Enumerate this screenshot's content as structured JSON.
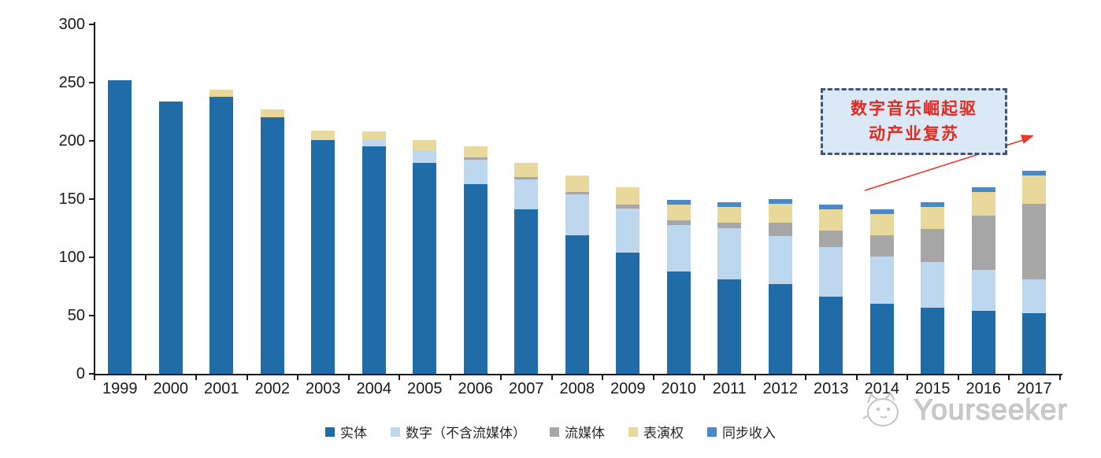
{
  "chart_data": {
    "type": "bar",
    "stacked": true,
    "title": "",
    "xlabel": "",
    "ylabel": "",
    "ylim": [
      0,
      300
    ],
    "ytick_step": 50,
    "ytick_labels": [
      "0",
      "50",
      "100",
      "150",
      "200",
      "250",
      "300"
    ],
    "grid": false,
    "legend_position": "bottom",
    "categories": [
      "1999",
      "2000",
      "2001",
      "2002",
      "2003",
      "2004",
      "2005",
      "2006",
      "2007",
      "2008",
      "2009",
      "2010",
      "2011",
      "2012",
      "2013",
      "2014",
      "2015",
      "2016",
      "2017"
    ],
    "series": [
      {
        "name": "实体",
        "color": "#1F6CA9",
        "values": [
          252,
          234,
          238,
          220,
          201,
          195,
          181,
          163,
          141,
          119,
          104,
          88,
          81,
          77,
          66,
          60,
          57,
          54,
          52
        ]
      },
      {
        "name": "数字（不含流媒体）",
        "color": "#BDD7EE",
        "values": [
          0,
          0,
          0,
          0,
          0,
          6,
          11,
          21,
          26,
          35,
          38,
          40,
          44,
          41,
          43,
          41,
          39,
          35,
          29
        ]
      },
      {
        "name": "流媒体",
        "color": "#A6A6A6",
        "values": [
          0,
          0,
          0,
          0,
          0,
          0,
          0,
          2,
          2,
          2,
          3,
          4,
          5,
          12,
          14,
          18,
          28,
          47,
          65
        ]
      },
      {
        "name": "表演权",
        "color": "#E9D89B",
        "values": [
          0,
          0,
          6,
          7,
          8,
          7,
          9,
          9,
          12,
          14,
          15,
          13,
          13,
          16,
          18,
          18,
          19,
          20,
          24
        ]
      },
      {
        "name": "同步收入",
        "color": "#4A89C8",
        "values": [
          0,
          0,
          0,
          0,
          0,
          0,
          0,
          0,
          0,
          0,
          0,
          4,
          4,
          4,
          4,
          4,
          4,
          4,
          4
        ]
      }
    ]
  },
  "annotation": {
    "line1": "数字音乐崛起驱",
    "line2": "动产业复苏",
    "box_fill": "#DBE8F5",
    "border_color": "#44546A",
    "text_color": "#E02B20",
    "arrow_color": "#E8372C"
  },
  "watermark": {
    "text": "Yourseeker",
    "icon": "cat-logo-icon",
    "color": "#C6C6C6"
  }
}
